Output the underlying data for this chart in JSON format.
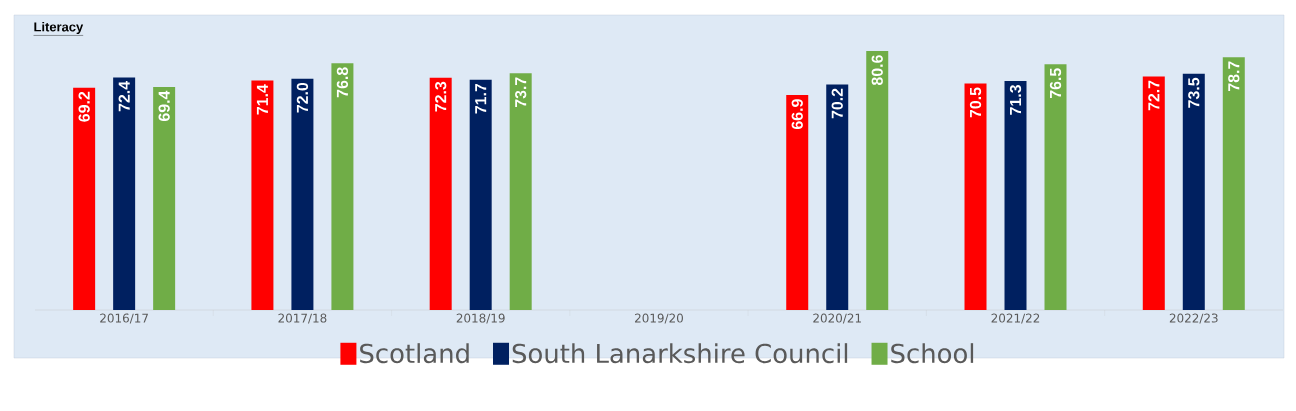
{
  "chart_data": {
    "type": "bar",
    "title": "Literacy",
    "categories": [
      "2016/17",
      "2017/18",
      "2018/19",
      "2019/20",
      "2020/21",
      "2021/22",
      "2022/23"
    ],
    "series": [
      {
        "name": "Scotland",
        "color": "#ff0000",
        "values": [
          69.2,
          71.4,
          72.3,
          null,
          66.9,
          70.5,
          72.7
        ],
        "value_labels": [
          "69.2",
          "71.4",
          "72.3",
          null,
          "66.9",
          "70.5",
          "72.7"
        ]
      },
      {
        "name": "South Lanarkshire Council",
        "color": "#002060",
        "values": [
          72.4,
          72.0,
          71.7,
          null,
          70.2,
          71.3,
          73.5
        ],
        "value_labels": [
          "72.4",
          "72.0",
          "71.7",
          null,
          "70.2",
          "71.3",
          "73.5"
        ]
      },
      {
        "name": "School",
        "color": "#70ad47",
        "values": [
          69.4,
          76.8,
          73.7,
          null,
          80.6,
          76.5,
          78.7
        ],
        "value_labels": [
          "69.4",
          "76.8",
          "73.7",
          null,
          "80.6",
          "76.5",
          "78.7"
        ]
      }
    ],
    "legend": "bottom"
  }
}
